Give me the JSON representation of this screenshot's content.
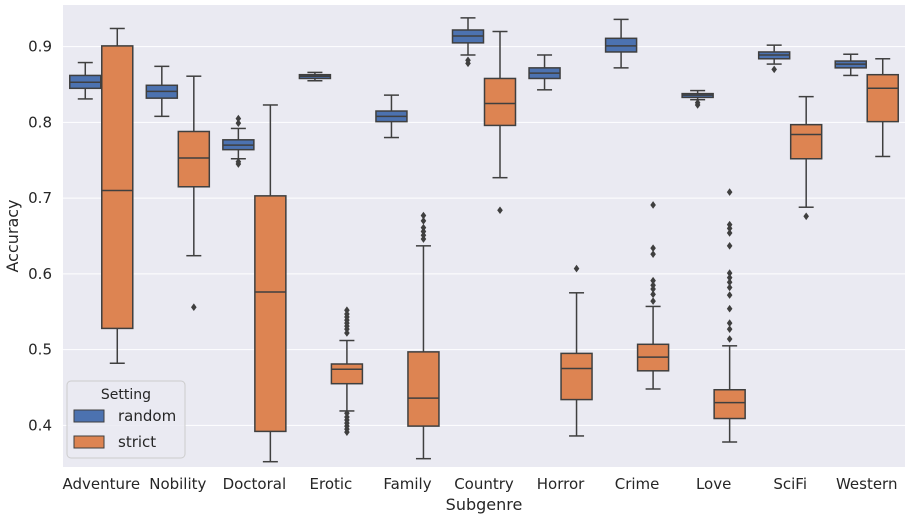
{
  "chart_data": {
    "type": "boxplot",
    "xlabel": "Subgenre",
    "ylabel": "Accuracy",
    "ylim": [
      0.345,
      0.955
    ],
    "yticks": [
      0.4,
      0.5,
      0.6,
      0.7,
      0.8,
      0.9
    ],
    "ytick_labels": [
      "0.4",
      "0.5",
      "0.6",
      "0.7",
      "0.8",
      "0.9"
    ],
    "grid": true,
    "categories": [
      "Adventure",
      "Nobility",
      "Doctoral",
      "Erotic",
      "Family",
      "Country",
      "Horror",
      "Crime",
      "Love",
      "SciFi",
      "Western"
    ],
    "legend": {
      "title": "Setting",
      "position": "lower-left",
      "entries": [
        "random",
        "strict"
      ]
    },
    "series": [
      {
        "name": "random",
        "color": "#4c72b0",
        "boxes": [
          {
            "whislo": 0.831,
            "q1": 0.845,
            "med": 0.853,
            "q3": 0.862,
            "whishi": 0.879,
            "fliers": []
          },
          {
            "whislo": 0.808,
            "q1": 0.832,
            "med": 0.841,
            "q3": 0.849,
            "whishi": 0.874,
            "fliers": []
          },
          {
            "whislo": 0.752,
            "q1": 0.764,
            "med": 0.77,
            "q3": 0.777,
            "whishi": 0.792,
            "fliers": [
              0.805,
              0.799,
              0.748,
              0.745
            ]
          },
          {
            "whislo": 0.855,
            "q1": 0.858,
            "med": 0.861,
            "q3": 0.863,
            "whishi": 0.866,
            "fliers": []
          },
          {
            "whislo": 0.78,
            "q1": 0.801,
            "med": 0.808,
            "q3": 0.815,
            "whishi": 0.836,
            "fliers": []
          },
          {
            "whislo": 0.889,
            "q1": 0.905,
            "med": 0.914,
            "q3": 0.922,
            "whishi": 0.938,
            "fliers": [
              0.882,
              0.878
            ]
          },
          {
            "whislo": 0.843,
            "q1": 0.858,
            "med": 0.865,
            "q3": 0.872,
            "whishi": 0.889,
            "fliers": []
          },
          {
            "whislo": 0.872,
            "q1": 0.893,
            "med": 0.901,
            "q3": 0.911,
            "whishi": 0.936,
            "fliers": []
          },
          {
            "whislo": 0.83,
            "q1": 0.833,
            "med": 0.836,
            "q3": 0.838,
            "whishi": 0.842,
            "fliers": [
              0.826,
              0.823
            ]
          },
          {
            "whislo": 0.877,
            "q1": 0.884,
            "med": 0.889,
            "q3": 0.893,
            "whishi": 0.902,
            "fliers": [
              0.87
            ]
          },
          {
            "whislo": 0.862,
            "q1": 0.872,
            "med": 0.877,
            "q3": 0.881,
            "whishi": 0.89,
            "fliers": []
          }
        ]
      },
      {
        "name": "strict",
        "color": "#dd8452",
        "boxes": [
          {
            "whislo": 0.482,
            "q1": 0.528,
            "med": 0.71,
            "q3": 0.901,
            "whishi": 0.924,
            "fliers": []
          },
          {
            "whislo": 0.624,
            "q1": 0.715,
            "med": 0.753,
            "q3": 0.788,
            "whishi": 0.861,
            "fliers": [
              0.556
            ]
          },
          {
            "whislo": 0.352,
            "q1": 0.392,
            "med": 0.576,
            "q3": 0.703,
            "whishi": 0.823,
            "fliers": []
          },
          {
            "whislo": 0.419,
            "q1": 0.455,
            "med": 0.474,
            "q3": 0.481,
            "whishi": 0.512,
            "fliers": [
              0.552,
              0.547,
              0.543,
              0.539,
              0.535,
              0.531,
              0.527,
              0.522,
              0.416,
              0.411,
              0.407,
              0.403,
              0.399,
              0.395,
              0.391
            ]
          },
          {
            "whislo": 0.356,
            "q1": 0.399,
            "med": 0.436,
            "q3": 0.497,
            "whishi": 0.637,
            "fliers": [
              0.677,
              0.67,
              0.661,
              0.656,
              0.651,
              0.646
            ]
          },
          {
            "whislo": 0.727,
            "q1": 0.796,
            "med": 0.825,
            "q3": 0.858,
            "whishi": 0.92,
            "fliers": [
              0.684
            ]
          },
          {
            "whislo": 0.386,
            "q1": 0.434,
            "med": 0.475,
            "q3": 0.495,
            "whishi": 0.575,
            "fliers": [
              0.607
            ]
          },
          {
            "whislo": 0.448,
            "q1": 0.472,
            "med": 0.49,
            "q3": 0.507,
            "whishi": 0.557,
            "fliers": [
              0.691,
              0.634,
              0.626,
              0.591,
              0.585,
              0.58,
              0.573,
              0.564
            ]
          },
          {
            "whislo": 0.378,
            "q1": 0.409,
            "med": 0.43,
            "q3": 0.447,
            "whishi": 0.505,
            "fliers": [
              0.708,
              0.665,
              0.66,
              0.654,
              0.637,
              0.601,
              0.595,
              0.589,
              0.582,
              0.572,
              0.554,
              0.535,
              0.527,
              0.514
            ]
          },
          {
            "whislo": 0.688,
            "q1": 0.752,
            "med": 0.784,
            "q3": 0.797,
            "whishi": 0.834,
            "fliers": [
              0.676
            ]
          },
          {
            "whislo": 0.755,
            "q1": 0.801,
            "med": 0.845,
            "q3": 0.863,
            "whishi": 0.884,
            "fliers": []
          }
        ]
      }
    ]
  }
}
